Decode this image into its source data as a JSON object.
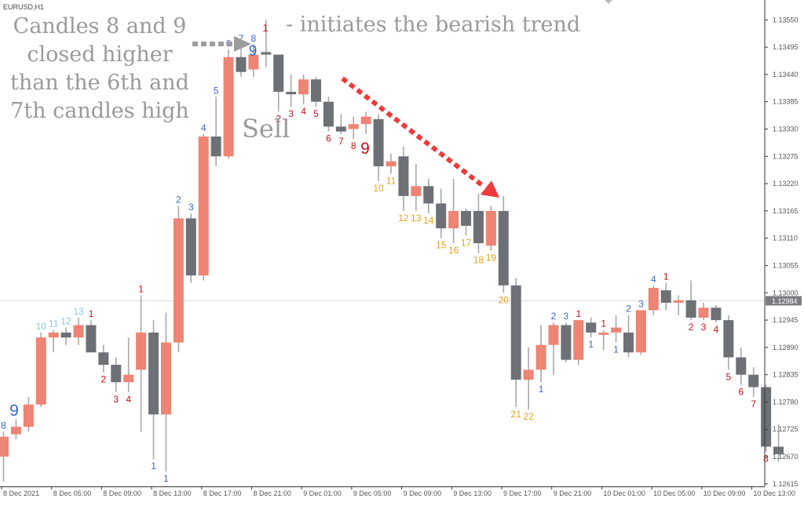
{
  "window": {
    "symbol_title": "EURUSD,H1"
  },
  "colors": {
    "bull": "#ee8473",
    "bear": "#6d7176",
    "wick": "#a6a8aa",
    "grid": "#dcdcdc",
    "axis_text": "#555555",
    "price_tag_bg": "#7a7d80",
    "price_tag_text": "#ffffff",
    "annotation_text": "#9a9a9a",
    "arrow_red": "#ee3b3b",
    "arrow_gray": "#9d9d9d",
    "label_red": "#cc1010",
    "label_blue": "#3a68c8",
    "label_lightblue": "#8ac4e2",
    "label_orange": "#e8a020"
  },
  "annotations": {
    "left_block": [
      "Candles 8 and 9",
      "closed higher",
      "than the 6th and",
      "7th candles high"
    ],
    "top_note": "- initiates the bearish trend",
    "top_note_number": "1",
    "sell": "Sell",
    "sell_nine": "9",
    "buy_nine_top": "9",
    "buy_nine_left": "9"
  },
  "chart_data": {
    "type": "candlestick",
    "title": "",
    "symbol": "EURUSD",
    "timeframe": "H1",
    "ylim": [
      1.1261,
      1.1359
    ],
    "yticks": [
      "1.13550",
      "1.13495",
      "1.13440",
      "1.13385",
      "1.13330",
      "1.13275",
      "1.13220",
      "1.13165",
      "1.13110",
      "1.13055",
      "1.13000",
      "1.12945",
      "1.12890",
      "1.12835",
      "1.12780",
      "1.12725",
      "1.12670",
      "1.12615"
    ],
    "current_price": "1.12984",
    "x_labels": [
      "8 Dec 2021",
      "8 Dec 05:00",
      "8 Dec 09:00",
      "8 Dec 13:00",
      "8 Dec 17:00",
      "8 Dec 21:00",
      "9 Dec 01:00",
      "9 Dec 05:00",
      "9 Dec 09:00",
      "9 Dec 13:00",
      "9 Dec 17:00",
      "9 Dec 21:00",
      "10 Dec 01:00",
      "10 Dec 05:00",
      "10 Dec 09:00",
      "10 Dec 13:00"
    ],
    "candles": [
      {
        "o": 1.1267,
        "h": 1.1272,
        "l": 1.1262,
        "c": 1.1271
      },
      {
        "o": 1.12715,
        "h": 1.12745,
        "l": 1.12705,
        "c": 1.1273
      },
      {
        "o": 1.1273,
        "h": 1.1279,
        "l": 1.1272,
        "c": 1.12775
      },
      {
        "o": 1.12775,
        "h": 1.1292,
        "l": 1.1277,
        "c": 1.1291
      },
      {
        "o": 1.1291,
        "h": 1.12925,
        "l": 1.1288,
        "c": 1.1292
      },
      {
        "o": 1.1292,
        "h": 1.1293,
        "l": 1.12895,
        "c": 1.1291
      },
      {
        "o": 1.1291,
        "h": 1.1295,
        "l": 1.12895,
        "c": 1.12935
      },
      {
        "o": 1.12935,
        "h": 1.12945,
        "l": 1.1288,
        "c": 1.1288
      },
      {
        "o": 1.1288,
        "h": 1.12895,
        "l": 1.1284,
        "c": 1.12855
      },
      {
        "o": 1.12855,
        "h": 1.1287,
        "l": 1.128,
        "c": 1.1282
      },
      {
        "o": 1.1282,
        "h": 1.1291,
        "l": 1.128,
        "c": 1.12835
      },
      {
        "o": 1.12845,
        "h": 1.12995,
        "l": 1.1272,
        "c": 1.1292
      },
      {
        "o": 1.1292,
        "h": 1.12945,
        "l": 1.12665,
        "c": 1.12755
      },
      {
        "o": 1.12755,
        "h": 1.1296,
        "l": 1.1264,
        "c": 1.129
      },
      {
        "o": 1.129,
        "h": 1.13175,
        "l": 1.1288,
        "c": 1.1315
      },
      {
        "o": 1.1315,
        "h": 1.1316,
        "l": 1.1302,
        "c": 1.13035
      },
      {
        "o": 1.13035,
        "h": 1.1332,
        "l": 1.13025,
        "c": 1.13315
      },
      {
        "o": 1.13315,
        "h": 1.13395,
        "l": 1.13255,
        "c": 1.13275
      },
      {
        "o": 1.13275,
        "h": 1.1349,
        "l": 1.1327,
        "c": 1.13475
      },
      {
        "o": 1.13475,
        "h": 1.135,
        "l": 1.13435,
        "c": 1.13445
      },
      {
        "o": 1.1345,
        "h": 1.135,
        "l": 1.13435,
        "c": 1.1348
      },
      {
        "o": 1.13485,
        "h": 1.1355,
        "l": 1.13455,
        "c": 1.1348
      },
      {
        "o": 1.1348,
        "h": 1.1348,
        "l": 1.13365,
        "c": 1.13405
      },
      {
        "o": 1.13405,
        "h": 1.1344,
        "l": 1.13375,
        "c": 1.134
      },
      {
        "o": 1.134,
        "h": 1.1344,
        "l": 1.1338,
        "c": 1.1343
      },
      {
        "o": 1.1343,
        "h": 1.13435,
        "l": 1.13375,
        "c": 1.13385
      },
      {
        "o": 1.13385,
        "h": 1.13395,
        "l": 1.13325,
        "c": 1.13335
      },
      {
        "o": 1.13335,
        "h": 1.1336,
        "l": 1.1332,
        "c": 1.13325
      },
      {
        "o": 1.1333,
        "h": 1.13355,
        "l": 1.1331,
        "c": 1.1334
      },
      {
        "o": 1.1334,
        "h": 1.13365,
        "l": 1.1332,
        "c": 1.13355
      },
      {
        "o": 1.1335,
        "h": 1.1336,
        "l": 1.13225,
        "c": 1.13255
      },
      {
        "o": 1.13255,
        "h": 1.1328,
        "l": 1.1324,
        "c": 1.13265
      },
      {
        "o": 1.13275,
        "h": 1.13295,
        "l": 1.13165,
        "c": 1.13195
      },
      {
        "o": 1.13195,
        "h": 1.1326,
        "l": 1.13165,
        "c": 1.13215
      },
      {
        "o": 1.13215,
        "h": 1.1323,
        "l": 1.1316,
        "c": 1.1318
      },
      {
        "o": 1.1318,
        "h": 1.1321,
        "l": 1.1311,
        "c": 1.1313
      },
      {
        "o": 1.1313,
        "h": 1.1323,
        "l": 1.131,
        "c": 1.13165
      },
      {
        "o": 1.13165,
        "h": 1.1317,
        "l": 1.13115,
        "c": 1.13135
      },
      {
        "o": 1.13165,
        "h": 1.132,
        "l": 1.1308,
        "c": 1.131
      },
      {
        "o": 1.13095,
        "h": 1.13175,
        "l": 1.13085,
        "c": 1.13165
      },
      {
        "o": 1.13165,
        "h": 1.13195,
        "l": 1.13,
        "c": 1.13015
      },
      {
        "o": 1.13015,
        "h": 1.1303,
        "l": 1.1277,
        "c": 1.12825
      },
      {
        "o": 1.12825,
        "h": 1.1289,
        "l": 1.12765,
        "c": 1.12845
      },
      {
        "o": 1.12845,
        "h": 1.12935,
        "l": 1.1282,
        "c": 1.12895
      },
      {
        "o": 1.12895,
        "h": 1.1294,
        "l": 1.12835,
        "c": 1.12935
      },
      {
        "o": 1.12935,
        "h": 1.1294,
        "l": 1.1286,
        "c": 1.12865
      },
      {
        "o": 1.12865,
        "h": 1.12945,
        "l": 1.12855,
        "c": 1.12945
      },
      {
        "o": 1.1294,
        "h": 1.1295,
        "l": 1.1291,
        "c": 1.1292
      },
      {
        "o": 1.1292,
        "h": 1.12925,
        "l": 1.12885,
        "c": 1.1292
      },
      {
        "o": 1.1292,
        "h": 1.12955,
        "l": 1.129,
        "c": 1.1293
      },
      {
        "o": 1.1292,
        "h": 1.12955,
        "l": 1.1287,
        "c": 1.1288
      },
      {
        "o": 1.1288,
        "h": 1.12965,
        "l": 1.12875,
        "c": 1.12965
      },
      {
        "o": 1.12965,
        "h": 1.13015,
        "l": 1.12955,
        "c": 1.1301
      },
      {
        "o": 1.13005,
        "h": 1.1302,
        "l": 1.12965,
        "c": 1.1298
      },
      {
        "o": 1.1298,
        "h": 1.12995,
        "l": 1.12955,
        "c": 1.12985
      },
      {
        "o": 1.12985,
        "h": 1.13025,
        "l": 1.12945,
        "c": 1.1295
      },
      {
        "o": 1.1295,
        "h": 1.1298,
        "l": 1.12945,
        "c": 1.1297
      },
      {
        "o": 1.1297,
        "h": 1.12975,
        "l": 1.1294,
        "c": 1.12945
      },
      {
        "o": 1.12945,
        "h": 1.12955,
        "l": 1.12845,
        "c": 1.1287
      },
      {
        "o": 1.1287,
        "h": 1.1289,
        "l": 1.12815,
        "c": 1.12835
      },
      {
        "o": 1.12835,
        "h": 1.1285,
        "l": 1.1279,
        "c": 1.1281
      },
      {
        "o": 1.1281,
        "h": 1.12815,
        "l": 1.1268,
        "c": 1.1269
      },
      {
        "o": 1.1269,
        "h": 1.12735,
        "l": 1.1266,
        "c": 1.12675
      }
    ],
    "count_labels": [
      {
        "i": 0,
        "t": "8",
        "c": "blue",
        "pos": "above"
      },
      {
        "i": 3,
        "t": "10",
        "c": "lightblue",
        "pos": "above"
      },
      {
        "i": 4,
        "t": "11",
        "c": "lightblue",
        "pos": "above"
      },
      {
        "i": 5,
        "t": "12",
        "c": "lightblue",
        "pos": "above"
      },
      {
        "i": 6,
        "t": "13",
        "c": "lightblue",
        "pos": "above"
      },
      {
        "i": 7,
        "t": "1",
        "c": "red",
        "pos": "above"
      },
      {
        "i": 8,
        "t": "2",
        "c": "red",
        "pos": "below"
      },
      {
        "i": 9,
        "t": "3",
        "c": "red",
        "pos": "below"
      },
      {
        "i": 10,
        "t": "4",
        "c": "red",
        "pos": "below"
      },
      {
        "i": 11,
        "t": "1",
        "c": "red",
        "pos": "above"
      },
      {
        "i": 12,
        "t": "1",
        "c": "blue",
        "pos": "below"
      },
      {
        "i": 13,
        "t": "1",
        "c": "blue",
        "pos": "below"
      },
      {
        "i": 14,
        "t": "2",
        "c": "blue",
        "pos": "above"
      },
      {
        "i": 15,
        "t": "3",
        "c": "blue",
        "pos": "above"
      },
      {
        "i": 16,
        "t": "4",
        "c": "blue",
        "pos": "above"
      },
      {
        "i": 17,
        "t": "5",
        "c": "blue",
        "pos": "above"
      },
      {
        "i": 18,
        "t": "6",
        "c": "blue",
        "pos": "above"
      },
      {
        "i": 19,
        "t": "7",
        "c": "blue",
        "pos": "above"
      },
      {
        "i": 20,
        "t": "8",
        "c": "blue",
        "pos": "above"
      },
      {
        "i": 22,
        "t": "2",
        "c": "red",
        "pos": "below"
      },
      {
        "i": 23,
        "t": "3",
        "c": "red",
        "pos": "below"
      },
      {
        "i": 24,
        "t": "4",
        "c": "red",
        "pos": "below"
      },
      {
        "i": 25,
        "t": "5",
        "c": "red",
        "pos": "below"
      },
      {
        "i": 26,
        "t": "6",
        "c": "red",
        "pos": "below"
      },
      {
        "i": 27,
        "t": "7",
        "c": "red",
        "pos": "below"
      },
      {
        "i": 28,
        "t": "8",
        "c": "red",
        "pos": "below"
      },
      {
        "i": 30,
        "t": "10",
        "c": "orange",
        "pos": "below"
      },
      {
        "i": 31,
        "t": "11",
        "c": "orange",
        "pos": "below"
      },
      {
        "i": 32,
        "t": "12",
        "c": "orange",
        "pos": "below"
      },
      {
        "i": 33,
        "t": "13",
        "c": "orange",
        "pos": "below"
      },
      {
        "i": 34,
        "t": "14",
        "c": "orange",
        "pos": "below"
      },
      {
        "i": 35,
        "t": "15",
        "c": "orange",
        "pos": "below"
      },
      {
        "i": 36,
        "t": "16",
        "c": "orange",
        "pos": "below"
      },
      {
        "i": 37,
        "t": "17",
        "c": "orange",
        "pos": "below"
      },
      {
        "i": 38,
        "t": "18",
        "c": "orange",
        "pos": "below"
      },
      {
        "i": 39,
        "t": "19",
        "c": "orange",
        "pos": "below"
      },
      {
        "i": 40,
        "t": "20",
        "c": "orange",
        "pos": "below"
      },
      {
        "i": 41,
        "t": "21",
        "c": "orange",
        "pos": "below"
      },
      {
        "i": 42,
        "t": "22",
        "c": "orange",
        "pos": "below"
      },
      {
        "i": 43,
        "t": "1",
        "c": "blue",
        "pos": "below"
      },
      {
        "i": 44,
        "t": "2",
        "c": "blue",
        "pos": "above"
      },
      {
        "i": 45,
        "t": "3",
        "c": "blue",
        "pos": "above"
      },
      {
        "i": 46,
        "t": "1",
        "c": "red",
        "pos": "above"
      },
      {
        "i": 47,
        "t": "1",
        "c": "blue",
        "pos": "below"
      },
      {
        "i": 48,
        "t": "1",
        "c": "red",
        "pos": "above"
      },
      {
        "i": 49,
        "t": "1",
        "c": "blue",
        "pos": "below"
      },
      {
        "i": 50,
        "t": "2",
        "c": "blue",
        "pos": "above"
      },
      {
        "i": 51,
        "t": "3",
        "c": "blue",
        "pos": "above"
      },
      {
        "i": 52,
        "t": "4",
        "c": "blue",
        "pos": "above"
      },
      {
        "i": 53,
        "t": "1",
        "c": "red",
        "pos": "above"
      },
      {
        "i": 55,
        "t": "2",
        "c": "red",
        "pos": "below"
      },
      {
        "i": 56,
        "t": "3",
        "c": "red",
        "pos": "below"
      },
      {
        "i": 57,
        "t": "4",
        "c": "red",
        "pos": "below"
      },
      {
        "i": 58,
        "t": "5",
        "c": "red",
        "pos": "below"
      },
      {
        "i": 59,
        "t": "6",
        "c": "red",
        "pos": "below"
      },
      {
        "i": 60,
        "t": "7",
        "c": "red",
        "pos": "below"
      },
      {
        "i": 61,
        "t": "8",
        "c": "red",
        "pos": "below"
      }
    ]
  }
}
